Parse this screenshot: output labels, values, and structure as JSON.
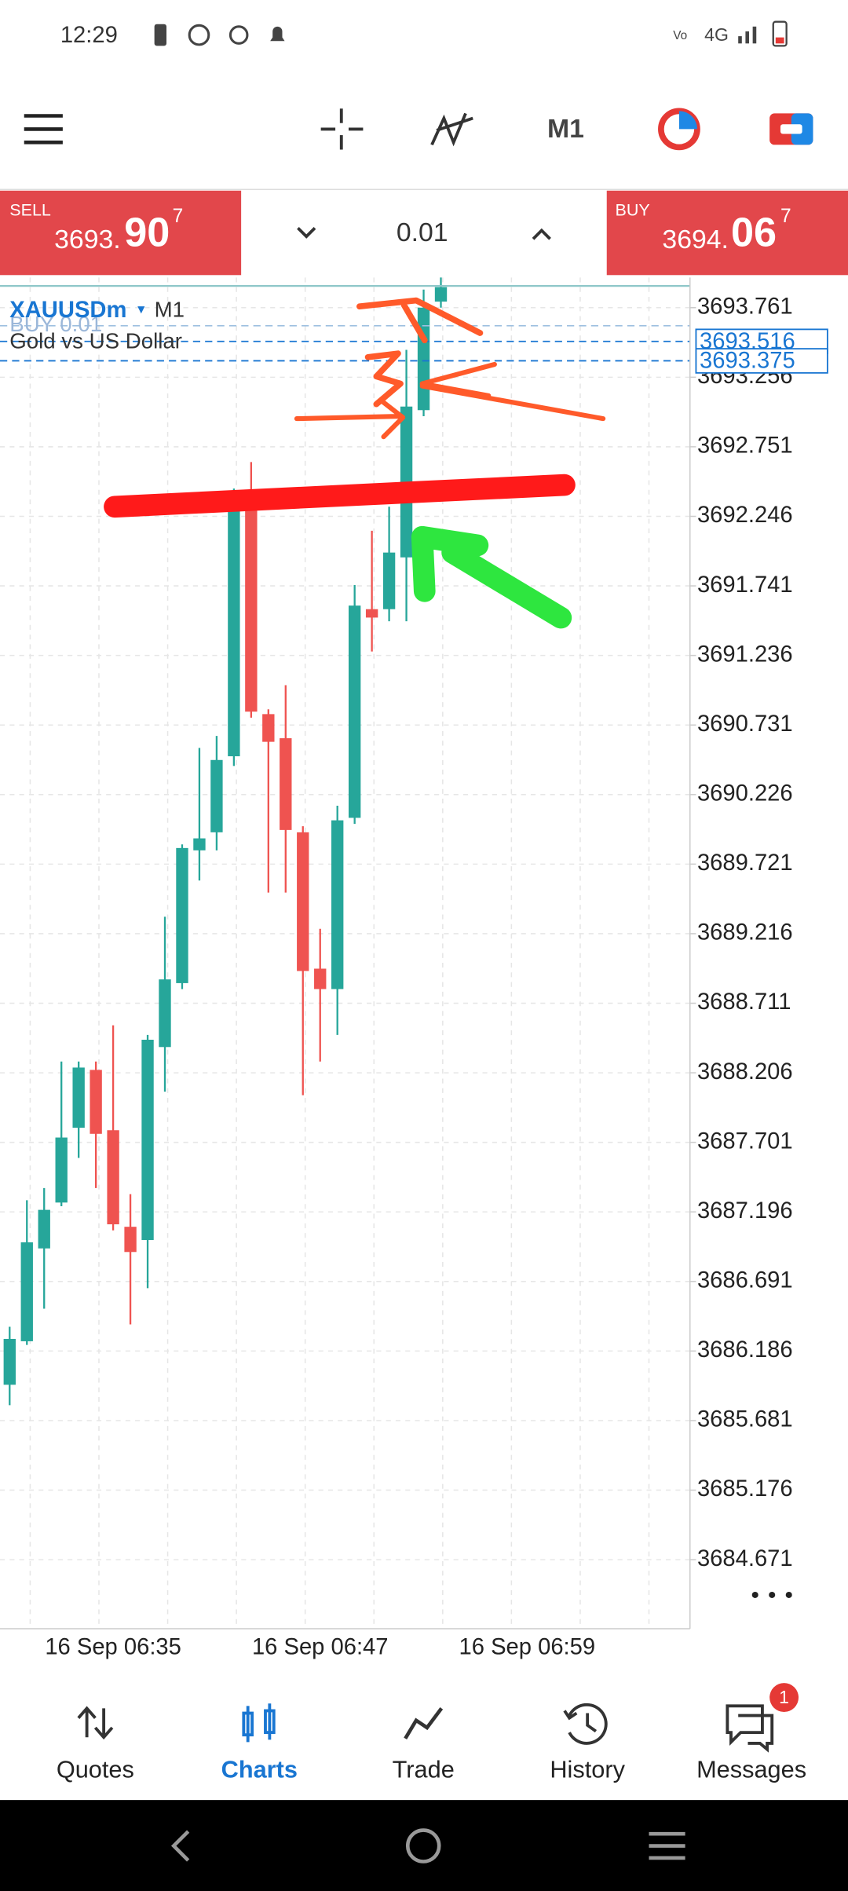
{
  "status_bar": {
    "time": "12:29",
    "network": "4G"
  },
  "toolbar": {
    "timeframe": "M1"
  },
  "trade_panel": {
    "sell_label": "SELL",
    "sell_price_main": "3693.",
    "sell_price_big": "90",
    "sell_price_sup": "7",
    "lot": "0.01",
    "buy_label": "BUY",
    "buy_price_main": "3694.",
    "buy_price_big": "06",
    "buy_price_sup": "7"
  },
  "chart": {
    "type": "candlestick",
    "symbol": "XAUUSDm",
    "timeframe": "M1",
    "description": "Gold vs US Dollar",
    "position_label": "BUY 0.01",
    "up_color": "#26a69a",
    "down_color": "#ef5350",
    "grid": true,
    "ylim": [
      3684.17,
      3693.98
    ],
    "yticks": [
      3693.761,
      3693.256,
      3692.751,
      3692.246,
      3691.741,
      3691.236,
      3690.731,
      3690.226,
      3689.721,
      3689.216,
      3688.711,
      3688.206,
      3687.701,
      3687.196,
      3686.691,
      3686.186,
      3685.681,
      3685.176,
      3684.671
    ],
    "price_lines": [
      {
        "value": 3693.516,
        "color": "#1976d2"
      },
      {
        "value": 3693.375,
        "color": "#1976d2"
      }
    ],
    "x_labels": [
      "16 Sep 06:35",
      "16 Sep 06:47",
      "16 Sep 06:59"
    ],
    "candles": [
      {
        "open": 3685.941,
        "high": 3686.362,
        "low": 3685.793,
        "close": 3686.274
      },
      {
        "open": 3686.257,
        "high": 3687.281,
        "low": 3686.23,
        "close": 3686.975
      },
      {
        "open": 3686.931,
        "high": 3687.369,
        "low": 3686.493,
        "close": 3687.211
      },
      {
        "open": 3687.264,
        "high": 3688.288,
        "low": 3687.237,
        "close": 3687.736
      },
      {
        "open": 3687.807,
        "high": 3688.288,
        "low": 3687.588,
        "close": 3688.244
      },
      {
        "open": 3688.227,
        "high": 3688.288,
        "low": 3687.369,
        "close": 3687.763
      },
      {
        "open": 3687.789,
        "high": 3688.551,
        "low": 3687.062,
        "close": 3687.106
      },
      {
        "open": 3687.088,
        "high": 3687.325,
        "low": 3686.379,
        "close": 3686.905
      },
      {
        "open": 3686.992,
        "high": 3688.481,
        "low": 3686.642,
        "close": 3688.446
      },
      {
        "open": 3688.393,
        "high": 3689.339,
        "low": 3688.069,
        "close": 3688.884
      },
      {
        "open": 3688.857,
        "high": 3689.864,
        "low": 3688.814,
        "close": 3689.838
      },
      {
        "open": 3689.821,
        "high": 3690.565,
        "low": 3689.602,
        "close": 3689.908
      },
      {
        "open": 3689.952,
        "high": 3690.652,
        "low": 3689.821,
        "close": 3690.477
      },
      {
        "open": 3690.504,
        "high": 3692.448,
        "low": 3690.434,
        "close": 3692.316
      },
      {
        "open": 3692.316,
        "high": 3692.64,
        "low": 3690.784,
        "close": 3690.828
      },
      {
        "open": 3690.81,
        "high": 3690.845,
        "low": 3689.514,
        "close": 3690.609
      },
      {
        "open": 3690.635,
        "high": 3691.02,
        "low": 3689.514,
        "close": 3689.969
      },
      {
        "open": 3689.952,
        "high": 3689.996,
        "low": 3688.043,
        "close": 3688.945
      },
      {
        "open": 3688.962,
        "high": 3689.251,
        "low": 3688.288,
        "close": 3688.814
      },
      {
        "open": 3688.814,
        "high": 3690.145,
        "low": 3688.481,
        "close": 3690.039
      },
      {
        "open": 3690.057,
        "high": 3691.747,
        "low": 3690.013,
        "close": 3691.598
      },
      {
        "open": 3691.572,
        "high": 3692.141,
        "low": 3691.265,
        "close": 3691.511
      },
      {
        "open": 3691.572,
        "high": 3692.316,
        "low": 3691.484,
        "close": 3691.983
      },
      {
        "open": 3691.948,
        "high": 3693.455,
        "low": 3691.484,
        "close": 3693.043
      },
      {
        "open": 3693.017,
        "high": 3693.892,
        "low": 3692.973,
        "close": 3693.761
      },
      {
        "open": 3693.805,
        "high": 3693.98,
        "low": 3693.761,
        "close": 3693.91
      }
    ]
  },
  "tab_bar": {
    "tabs": [
      "Quotes",
      "Charts",
      "Trade",
      "History",
      "Messages"
    ],
    "messages_badge": "1"
  }
}
